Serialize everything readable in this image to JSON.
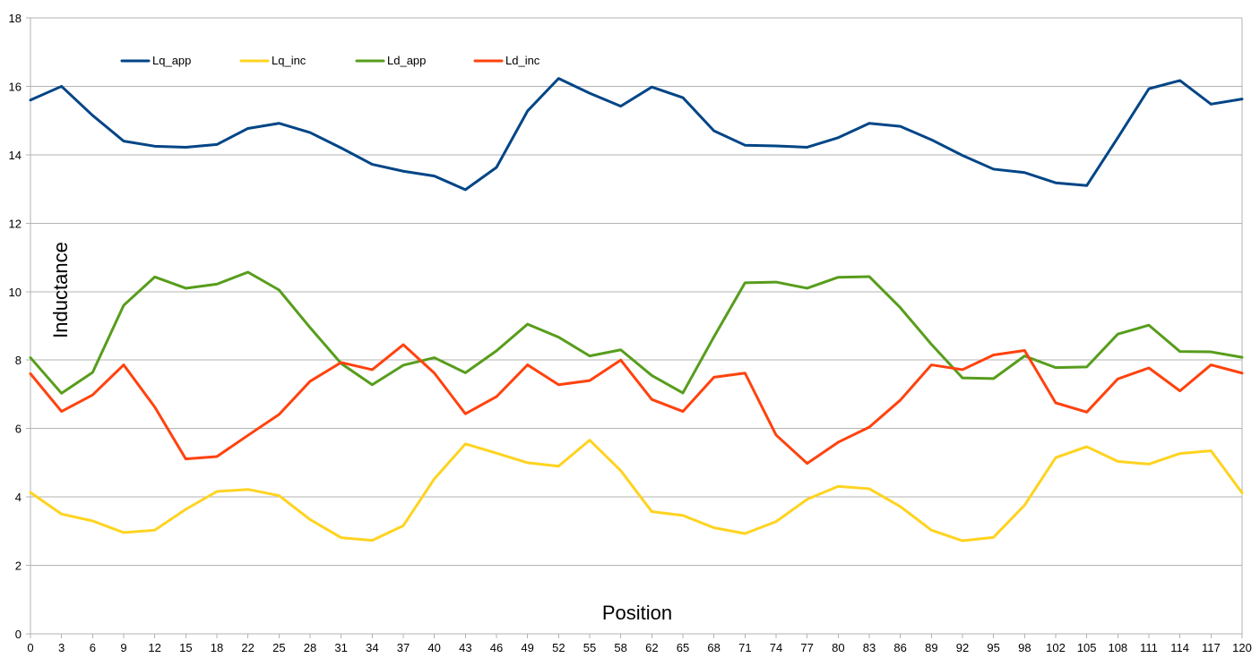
{
  "chart_data": {
    "type": "line",
    "title": "",
    "xlabel": "Position",
    "ylabel": "Inductance",
    "ylim": [
      0,
      18
    ],
    "yticks": [
      0,
      2,
      4,
      6,
      8,
      10,
      12,
      14,
      16,
      18
    ],
    "grid": true,
    "legend_position": "top-left",
    "categories": [
      "0",
      "3",
      "6",
      "9",
      "12",
      "15",
      "18",
      "22",
      "25",
      "28",
      "31",
      "34",
      "37",
      "40",
      "43",
      "46",
      "49",
      "52",
      "55",
      "58",
      "62",
      "65",
      "68",
      "71",
      "74",
      "77",
      "80",
      "83",
      "86",
      "89",
      "92",
      "95",
      "98",
      "102",
      "105",
      "108",
      "111",
      "114",
      "117",
      "120"
    ],
    "series": [
      {
        "name": "Lq_app",
        "color": "#004586",
        "values": [
          15.6,
          16.0,
          15.15,
          14.4,
          14.25,
          14.22,
          14.3,
          14.77,
          14.92,
          14.65,
          14.2,
          13.72,
          13.52,
          13.38,
          12.98,
          13.63,
          15.28,
          16.23,
          15.8,
          15.42,
          15.98,
          15.67,
          14.7,
          14.28,
          14.26,
          14.22,
          14.5,
          14.92,
          14.83,
          14.44,
          13.98,
          13.58,
          13.48,
          13.18,
          13.1,
          14.5,
          15.93,
          16.17,
          15.48,
          15.63
        ]
      },
      {
        "name": "Lq_inc",
        "color": "#ffd320",
        "values": [
          4.13,
          3.5,
          3.3,
          2.96,
          3.03,
          3.64,
          4.16,
          4.22,
          4.04,
          3.34,
          2.81,
          2.73,
          3.16,
          4.53,
          5.55,
          5.28,
          5.0,
          4.9,
          5.66,
          4.77,
          3.57,
          3.46,
          3.1,
          2.93,
          3.28,
          3.93,
          4.31,
          4.24,
          3.72,
          3.03,
          2.72,
          2.82,
          3.76,
          5.15,
          5.47,
          5.04,
          4.96,
          5.27,
          5.35,
          4.12
        ]
      },
      {
        "name": "Ld_app",
        "color": "#579d1c",
        "values": [
          8.07,
          7.03,
          7.64,
          9.6,
          10.43,
          10.1,
          10.22,
          10.57,
          10.05,
          8.95,
          7.9,
          7.28,
          7.85,
          8.07,
          7.63,
          8.27,
          9.05,
          8.67,
          8.12,
          8.3,
          7.55,
          7.04,
          8.68,
          10.26,
          10.28,
          10.1,
          10.42,
          10.44,
          9.53,
          8.46,
          7.48,
          7.46,
          8.12,
          7.78,
          7.8,
          8.76,
          9.02,
          8.25,
          8.24,
          8.08
        ]
      },
      {
        "name": "Ld_inc",
        "color": "#ff420e",
        "values": [
          7.6,
          6.5,
          6.98,
          7.86,
          6.63,
          5.11,
          5.18,
          5.8,
          6.41,
          7.38,
          7.93,
          7.72,
          8.45,
          7.62,
          6.43,
          6.93,
          7.86,
          7.28,
          7.4,
          8.0,
          6.85,
          6.5,
          7.5,
          7.62,
          5.81,
          4.98,
          5.6,
          6.04,
          6.83,
          7.86,
          7.72,
          8.15,
          8.28,
          6.75,
          6.48,
          7.45,
          7.77,
          7.1,
          7.86,
          7.62
        ]
      }
    ]
  }
}
